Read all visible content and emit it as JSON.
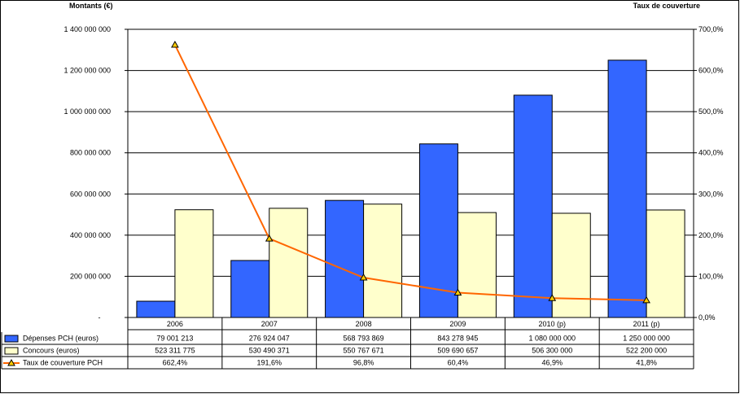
{
  "chart_data": {
    "type": "bar",
    "left_axis_title": "Montants (€)",
    "right_axis_title": "Taux de couverture",
    "categories": [
      "2006",
      "2007",
      "2008",
      "2009",
      "2010 (p)",
      "2011 (p)"
    ],
    "ylim_left": [
      0,
      1400000000
    ],
    "left_ticks": [
      {
        "value": 0,
        "label": "-"
      },
      {
        "value": 200000000,
        "label": "200 000 000"
      },
      {
        "value": 400000000,
        "label": "400 000 000"
      },
      {
        "value": 600000000,
        "label": "600 000 000"
      },
      {
        "value": 800000000,
        "label": "800 000 000"
      },
      {
        "value": 1000000000,
        "label": "1 000 000 000"
      },
      {
        "value": 1200000000,
        "label": "1 200 000 000"
      },
      {
        "value": 1400000000,
        "label": "1 400 000 000"
      }
    ],
    "ylim_right": [
      0,
      700
    ],
    "right_ticks": [
      {
        "value": 0,
        "label": "0,0%"
      },
      {
        "value": 100,
        "label": "100,0%"
      },
      {
        "value": 200,
        "label": "200,0%"
      },
      {
        "value": 300,
        "label": "300,0%"
      },
      {
        "value": 400,
        "label": "400,0%"
      },
      {
        "value": 500,
        "label": "500,0%"
      },
      {
        "value": 600,
        "label": "600,0%"
      },
      {
        "value": 700,
        "label": "700,0%"
      }
    ],
    "grid": true,
    "series": [
      {
        "name": "Dépenses PCH (euros)",
        "kind": "bar",
        "axis": "left",
        "color": "#3366ff",
        "values": [
          79001213,
          276924047,
          568793869,
          843278945,
          1080000000,
          1250000000
        ],
        "labels": [
          "79 001 213",
          "276 924 047",
          "568 793 869",
          "843 278 945",
          "1 080 000 000",
          "1 250 000 000"
        ]
      },
      {
        "name": "Concours (euros)",
        "kind": "bar",
        "axis": "left",
        "color": "#ffffcc",
        "values": [
          523311775,
          530490371,
          550767671,
          509690657,
          506300000,
          522200000
        ],
        "labels": [
          "523 311 775",
          "530 490 371",
          "550 767 671",
          "509 690 657",
          "506 300 000",
          "522 200 000"
        ]
      },
      {
        "name": "Taux de couverture PCH",
        "kind": "line",
        "axis": "right",
        "color": "#ff6600",
        "marker_color": "#ffcc00",
        "values": [
          662.4,
          191.6,
          96.8,
          60.4,
          46.9,
          41.8
        ],
        "labels": [
          "662,4%",
          "191,6%",
          "96,8%",
          "60,4%",
          "46,9%",
          "41,8%"
        ]
      }
    ]
  }
}
